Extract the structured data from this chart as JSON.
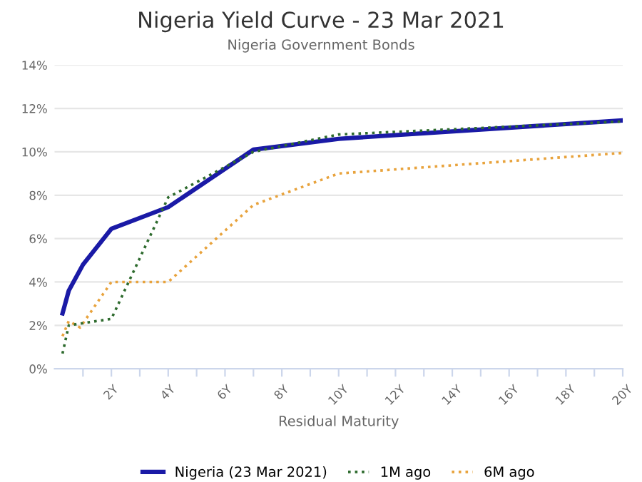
{
  "chart_data": {
    "type": "line",
    "title": "Nigeria Yield Curve - 23 Mar 2021",
    "subtitle": "Nigeria Government Bonds",
    "xlabel": "Residual Maturity",
    "xlim": [
      0,
      20
    ],
    "xticks": [
      {
        "value": 1,
        "label": null
      },
      {
        "value": 2,
        "label": "2Y"
      },
      {
        "value": 3,
        "label": null
      },
      {
        "value": 4,
        "label": "4Y"
      },
      {
        "value": 5,
        "label": null
      },
      {
        "value": 6,
        "label": "6Y"
      },
      {
        "value": 7,
        "label": null
      },
      {
        "value": 8,
        "label": "8Y"
      },
      {
        "value": 9,
        "label": null
      },
      {
        "value": 10,
        "label": "10Y"
      },
      {
        "value": 11,
        "label": null
      },
      {
        "value": 12,
        "label": "12Y"
      },
      {
        "value": 13,
        "label": null
      },
      {
        "value": 14,
        "label": "14Y"
      },
      {
        "value": 15,
        "label": null
      },
      {
        "value": 16,
        "label": "16Y"
      },
      {
        "value": 17,
        "label": null
      },
      {
        "value": 18,
        "label": "18Y"
      },
      {
        "value": 19,
        "label": null
      },
      {
        "value": 20,
        "label": "20Y"
      }
    ],
    "ylim": [
      0,
      14
    ],
    "yticks": [
      {
        "value": 0,
        "label": "0%"
      },
      {
        "value": 2,
        "label": "2%"
      },
      {
        "value": 4,
        "label": "4%"
      },
      {
        "value": 6,
        "label": "6%"
      },
      {
        "value": 8,
        "label": "8%"
      },
      {
        "value": 10,
        "label": "10%"
      },
      {
        "value": 12,
        "label": "12%"
      },
      {
        "value": 14,
        "label": "14%"
      }
    ],
    "grid": "y",
    "legend": "bottom",
    "series": [
      {
        "name": "6M ago",
        "color": "#e8a33d",
        "line_style": "dotted",
        "x": [
          0.28,
          0.5,
          0.9,
          2,
          4,
          7,
          10,
          20
        ],
        "values": [
          1.5,
          2.2,
          1.9,
          4.0,
          4.0,
          7.55,
          9.0,
          9.95
        ]
      },
      {
        "name": "1M ago",
        "color": "#2e6b2e",
        "line_style": "dotted",
        "x": [
          0.28,
          0.5,
          2,
          4,
          7,
          10,
          20
        ],
        "values": [
          0.7,
          2.0,
          2.3,
          7.9,
          10.0,
          10.8,
          11.4
        ]
      },
      {
        "name": "Nigeria (23 Mar 2021)",
        "color": "#1a1aa6",
        "line_style": "solid",
        "x": [
          0.28,
          0.5,
          1,
          2,
          4,
          7,
          10,
          20
        ],
        "values": [
          2.55,
          3.6,
          4.8,
          6.45,
          7.45,
          10.1,
          10.6,
          11.45
        ]
      }
    ]
  }
}
